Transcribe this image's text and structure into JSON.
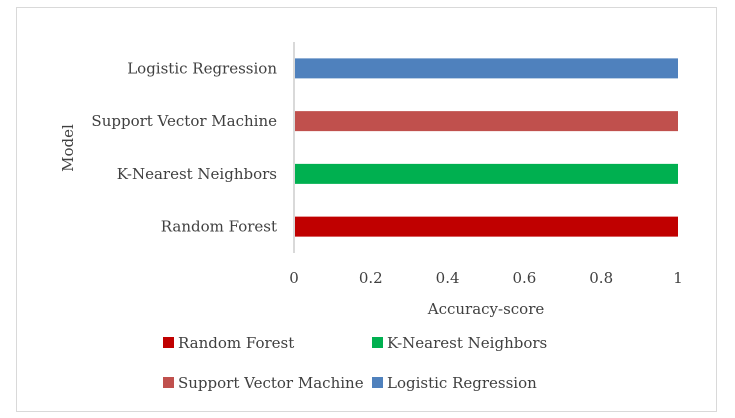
{
  "chart_data": {
    "type": "bar",
    "orientation": "horizontal",
    "title": "",
    "xlabel": "Accuracy-score",
    "ylabel": "Model",
    "xlim": [
      0,
      1
    ],
    "x_ticks": [
      "0",
      "0.2",
      "0.4",
      "0.6",
      "0.8",
      "1"
    ],
    "grid": false,
    "legend_position": "bottom",
    "categories": [
      "Random Forest",
      "K-Nearest Neighbors",
      "Support Vector Machine",
      "Logistic Regression"
    ],
    "values": [
      1,
      1,
      1,
      1
    ],
    "colors": [
      "#c00000",
      "#00b050",
      "#c0504d",
      "#4f81bd"
    ],
    "legend": [
      {
        "label": "Random Forest",
        "color": "#c00000"
      },
      {
        "label": "K-Nearest Neighbors",
        "color": "#00b050"
      },
      {
        "label": "Support Vector Machine",
        "color": "#c0504d"
      },
      {
        "label": "Logistic Regression",
        "color": "#4f81bd"
      }
    ]
  }
}
